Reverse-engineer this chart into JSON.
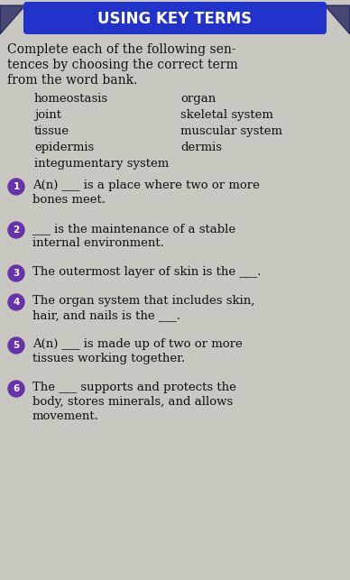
{
  "title": "USING KEY TERMS",
  "title_bg_color": "#2233cc",
  "title_text_color": "#ffffff",
  "body_bg_color": "#c8c8c0",
  "instructions_lines": [
    "Complete each of the following sen-",
    "tences by choosing the correct term",
    "from the word bank."
  ],
  "word_bank_left": [
    "homeostasis",
    "joint",
    "tissue",
    "epidermis",
    "integumentary system"
  ],
  "word_bank_right": [
    "organ",
    "skeletal system",
    "muscular system",
    "dermis"
  ],
  "circle_color": "#6633aa",
  "questions": [
    {
      "num": "1",
      "lines": [
        "A(n) ___ is a place where two or more",
        "bones meet."
      ]
    },
    {
      "num": "2",
      "lines": [
        "___ is the maintenance of a stable",
        "internal environment."
      ]
    },
    {
      "num": "3",
      "lines": [
        "The outermost layer of skin is the ___."
      ]
    },
    {
      "num": "4",
      "lines": [
        "The organ system that includes skin,",
        "hair, and nails is the ___."
      ]
    },
    {
      "num": "5",
      "lines": [
        "A(n) ___ is made up of two or more",
        "tissues working together."
      ]
    },
    {
      "num": "6",
      "lines": [
        "The ___ supports and protects the",
        "body, stores minerals, and allows",
        "movement."
      ]
    }
  ],
  "fig_width": 3.88,
  "fig_height": 6.43,
  "dpi": 100
}
